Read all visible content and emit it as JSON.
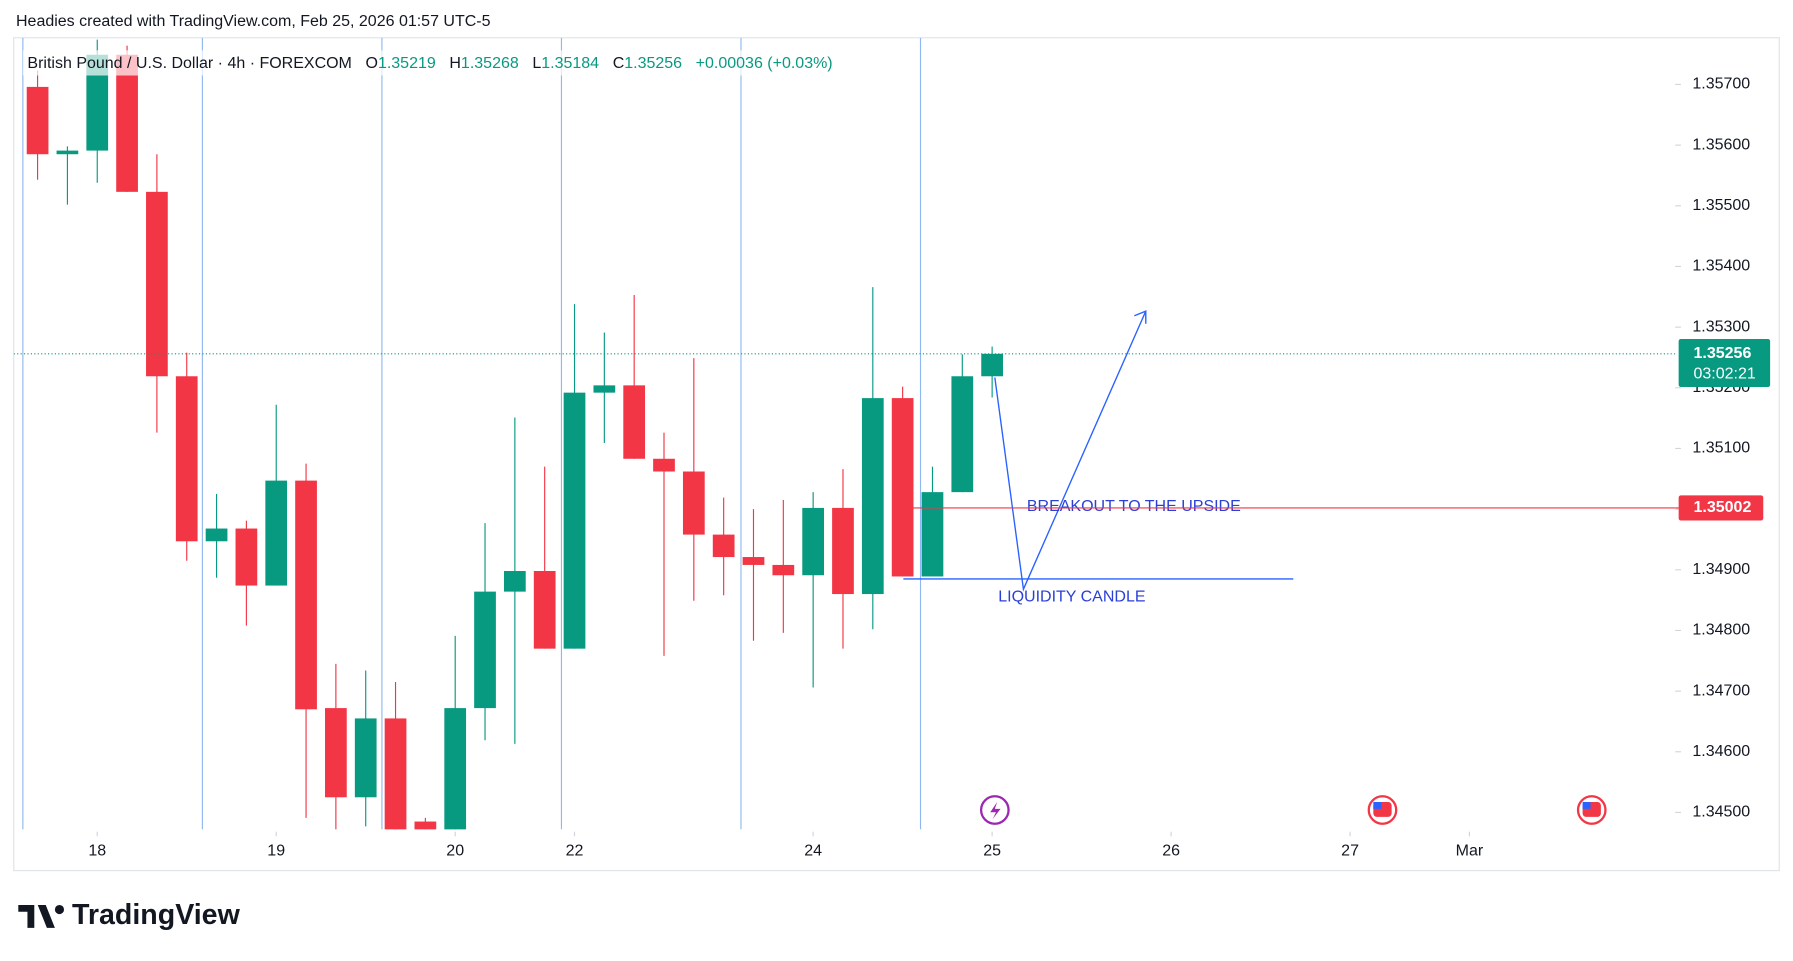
{
  "header": "Headies created with TradingView.com, Feb 25, 2026 01:57 UTC-5",
  "legend": {
    "symbol": "British Pound / U.S. Dollar · 4h · FOREXCOM",
    "open_label": "O",
    "open": "1.35219",
    "high_label": "H",
    "high": "1.35268",
    "low_label": "L",
    "low": "1.35184",
    "close_label": "C",
    "close": "1.35256",
    "change": "+0.00036 (+0.03%)"
  },
  "logo": "TradingView",
  "annotations": [
    "BREAKOUT TO THE UPSIDE",
    "LIQUIDITY CANDLE"
  ],
  "chart_data": {
    "type": "candlestick",
    "up_color": "#089981",
    "down_color": "#f23645",
    "open": [
      1.35696,
      1.35585,
      1.35591,
      1.35749,
      1.35523,
      1.35219,
      1.34947,
      1.34968,
      1.34874,
      1.35047,
      1.34672,
      1.34525,
      1.34655,
      1.34485,
      1.34462,
      1.34672,
      1.34864,
      1.34898,
      1.3477,
      1.35192,
      1.35204,
      1.35083,
      1.35062,
      1.34958,
      1.34921,
      1.34908,
      1.34891,
      1.35002,
      1.3486,
      1.35183,
      1.34889,
      1.35028,
      1.35219
    ],
    "high": [
      1.35723,
      1.35598,
      1.35774,
      1.35764,
      1.35585,
      1.35258,
      1.35025,
      1.34981,
      1.35172,
      1.35075,
      1.34745,
      1.34734,
      1.34715,
      1.34491,
      1.34791,
      1.34977,
      1.35151,
      1.3507,
      1.35338,
      1.35291,
      1.35353,
      1.35126,
      1.35249,
      1.35019,
      1.35,
      1.35015,
      1.35028,
      1.35066,
      1.35366,
      1.35202,
      1.3507,
      1.35255,
      1.35268
    ],
    "low": [
      1.35543,
      1.35502,
      1.35538,
      1.35523,
      1.35126,
      1.34915,
      1.34887,
      1.34808,
      1.34874,
      1.34491,
      1.34472,
      1.34477,
      1.3444,
      1.3442,
      1.3444,
      1.34619,
      1.34613,
      1.3477,
      1.3477,
      1.35109,
      1.35083,
      1.34758,
      1.34849,
      1.34858,
      1.34783,
      1.34796,
      1.34706,
      1.3477,
      1.34802,
      1.34889,
      1.34889,
      1.35028,
      1.35184
    ],
    "close": [
      1.35585,
      1.35591,
      1.35749,
      1.35523,
      1.35219,
      1.34947,
      1.34968,
      1.34874,
      1.35047,
      1.3467,
      1.34525,
      1.34655,
      1.3446,
      1.3444,
      1.34672,
      1.34864,
      1.34898,
      1.3477,
      1.35192,
      1.35204,
      1.35083,
      1.35062,
      1.34958,
      1.34921,
      1.34908,
      1.34891,
      1.35002,
      1.3486,
      1.35183,
      1.34889,
      1.35028,
      1.35219,
      1.35256
    ],
    "xlim": [
      -0.8,
      54.9
    ],
    "xticks": [
      {
        "value": 2,
        "label": "18"
      },
      {
        "value": 8,
        "label": "19"
      },
      {
        "value": 14,
        "label": "20"
      },
      {
        "value": 18,
        "label": "22"
      },
      {
        "value": 26,
        "label": "24"
      },
      {
        "value": 32,
        "label": "25"
      },
      {
        "value": 38,
        "label": "26"
      },
      {
        "value": 44,
        "label": "27"
      },
      {
        "value": 48,
        "label": "Mar"
      }
    ],
    "ylim": [
      1.34472,
      1.35777
    ],
    "yticks": [
      {
        "value": 1.357,
        "label": "1.35700"
      },
      {
        "value": 1.356,
        "label": "1.35600"
      },
      {
        "value": 1.355,
        "label": "1.35500"
      },
      {
        "value": 1.354,
        "label": "1.35400"
      },
      {
        "value": 1.353,
        "label": "1.35300"
      },
      {
        "value": 1.352,
        "label": "1.35200"
      },
      {
        "value": 1.351,
        "label": "1.35100"
      },
      {
        "value": 1.35,
        "label": "1.35000"
      },
      {
        "value": 1.349,
        "label": "1.34900"
      },
      {
        "value": 1.348,
        "label": "1.34800"
      },
      {
        "value": 1.347,
        "label": "1.34700"
      },
      {
        "value": 1.346,
        "label": "1.34600"
      },
      {
        "value": 1.345,
        "label": "1.34500"
      }
    ],
    "current_price": {
      "value": 1.35256,
      "label": "1.35256",
      "countdown": "03:02:21",
      "color": "#089981"
    },
    "horizontal_line": {
      "value": 1.35002,
      "label": "1.35002",
      "color": "#f23645"
    }
  }
}
